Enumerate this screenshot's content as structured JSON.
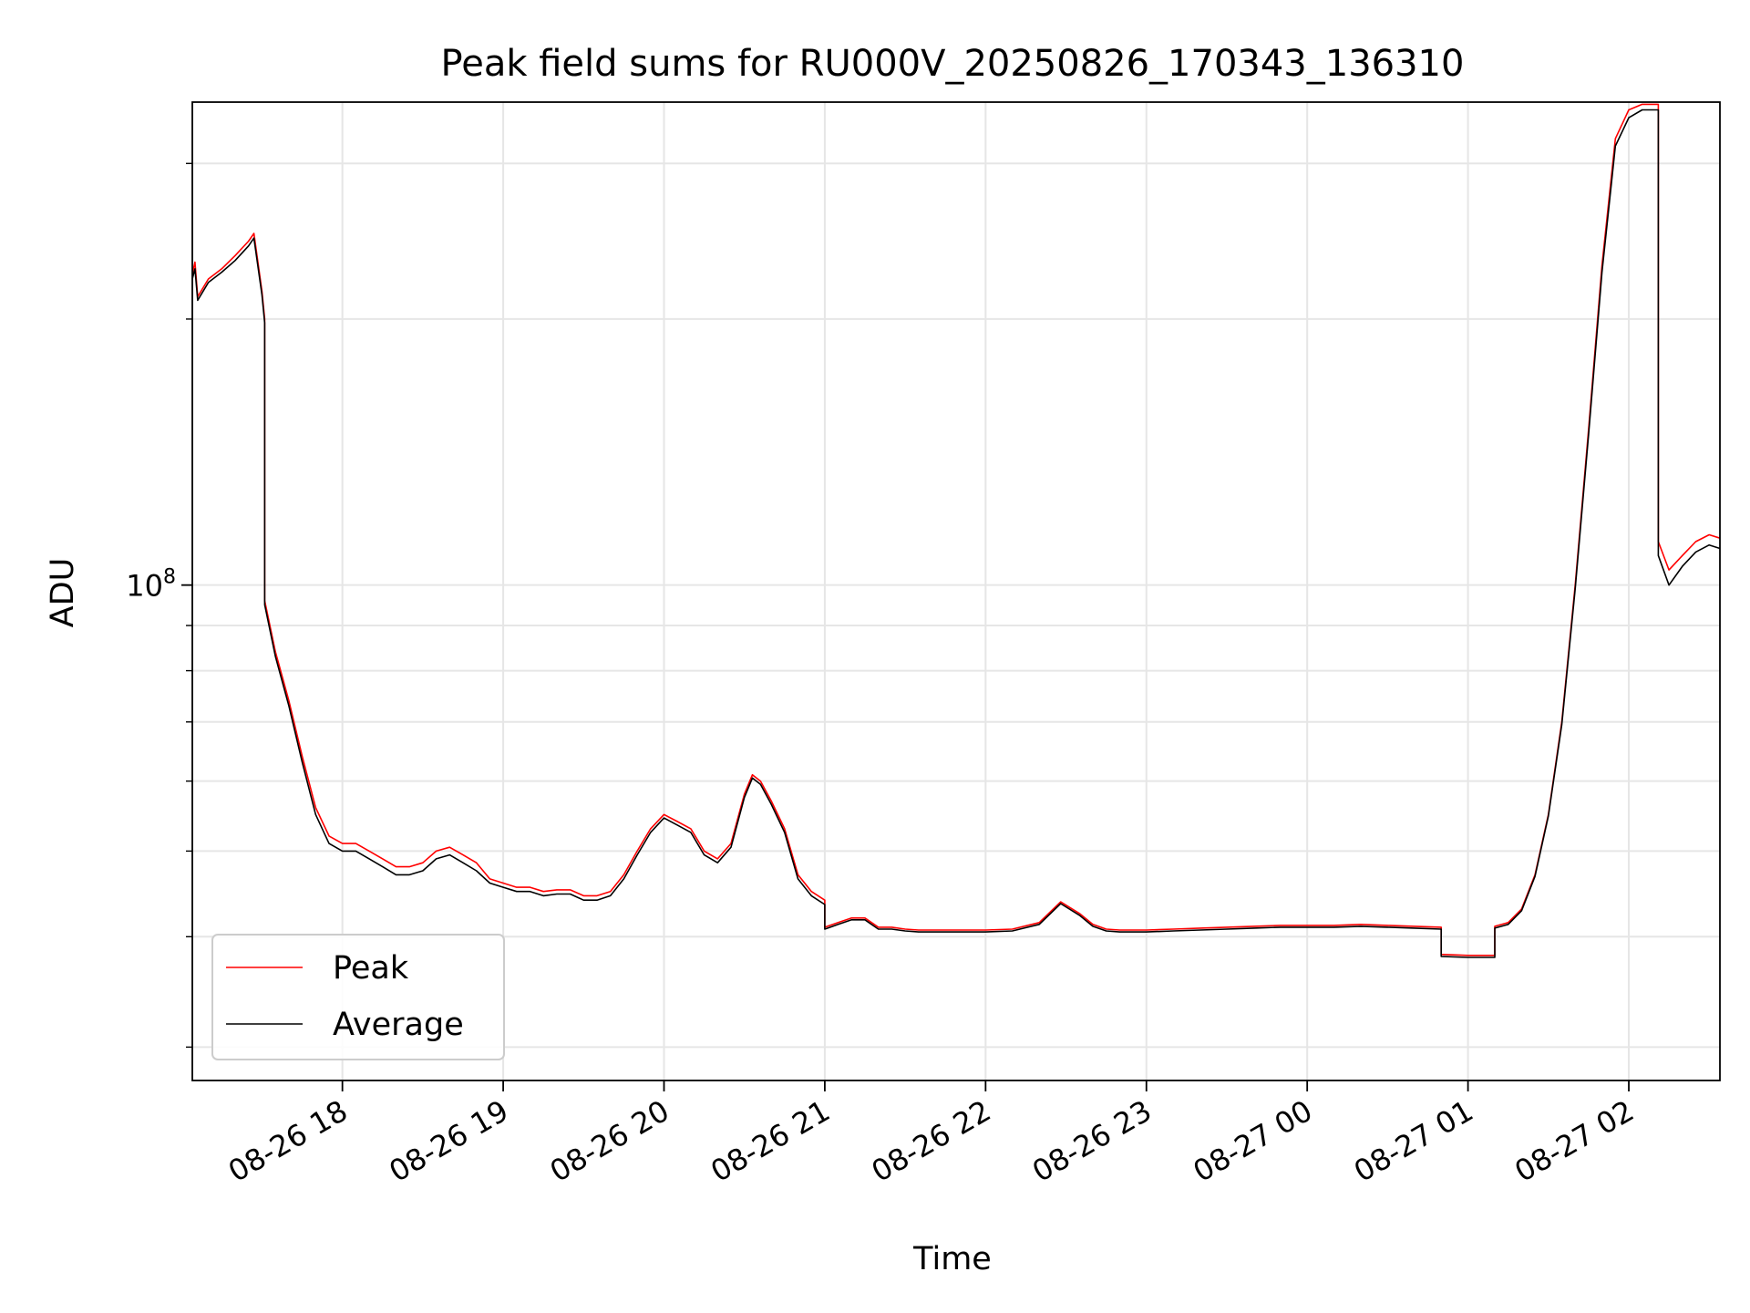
{
  "chart_data": {
    "type": "line",
    "title": "Peak field sums for RU000V_20250826_170343_136310",
    "xlabel": "Time",
    "ylabel": "ADU",
    "y_scale": "log",
    "ylim": [
      27500000,
      352000000
    ],
    "y_major_tick": {
      "value": 100000000,
      "label": "10^8"
    },
    "y_minor_ticks": [
      30000000,
      40000000,
      50000000,
      60000000,
      70000000,
      80000000,
      90000000,
      200000000,
      300000000
    ],
    "xlim": [
      "2025-08-26 17:04",
      "2025-08-27 02:34"
    ],
    "x_ticks": [
      {
        "t": "2025-08-26 18:00",
        "label": "08-26 18"
      },
      {
        "t": "2025-08-26 19:00",
        "label": "08-26 19"
      },
      {
        "t": "2025-08-26 20:00",
        "label": "08-26 20"
      },
      {
        "t": "2025-08-26 21:00",
        "label": "08-26 21"
      },
      {
        "t": "2025-08-26 22:00",
        "label": "08-26 22"
      },
      {
        "t": "2025-08-26 23:00",
        "label": "08-26 23"
      },
      {
        "t": "2025-08-27 00:00",
        "label": "08-27 00"
      },
      {
        "t": "2025-08-27 01:00",
        "label": "08-27 01"
      },
      {
        "t": "2025-08-27 02:00",
        "label": "08-27 02"
      }
    ],
    "grid": true,
    "legend_position": "lower-left",
    "series": [
      {
        "name": "Peak",
        "color": "#ff0000",
        "points": [
          [
            "2025-08-26 17:04",
            225000000
          ],
          [
            "2025-08-26 17:05",
            232000000
          ],
          [
            "2025-08-26 17:06",
            212000000
          ],
          [
            "2025-08-26 17:10",
            222000000
          ],
          [
            "2025-08-26 17:15",
            228000000
          ],
          [
            "2025-08-26 17:20",
            236000000
          ],
          [
            "2025-08-26 17:25",
            245000000
          ],
          [
            "2025-08-26 17:27",
            250000000
          ],
          [
            "2025-08-26 17:30",
            215000000
          ],
          [
            "2025-08-26 17:31",
            200000000
          ],
          [
            "2025-08-26 17:31",
            96000000
          ],
          [
            "2025-08-26 17:35",
            84000000
          ],
          [
            "2025-08-26 17:40",
            74000000
          ],
          [
            "2025-08-26 17:45",
            64000000
          ],
          [
            "2025-08-26 17:50",
            56000000
          ],
          [
            "2025-08-26 17:55",
            52000000
          ],
          [
            "2025-08-26 18:00",
            51000000
          ],
          [
            "2025-08-26 18:05",
            51000000
          ],
          [
            "2025-08-26 18:10",
            50000000
          ],
          [
            "2025-08-26 18:15",
            49000000
          ],
          [
            "2025-08-26 18:20",
            48000000
          ],
          [
            "2025-08-26 18:25",
            48000000
          ],
          [
            "2025-08-26 18:30",
            48500000
          ],
          [
            "2025-08-26 18:35",
            50000000
          ],
          [
            "2025-08-26 18:40",
            50500000
          ],
          [
            "2025-08-26 18:45",
            49500000
          ],
          [
            "2025-08-26 18:50",
            48500000
          ],
          [
            "2025-08-26 18:55",
            46500000
          ],
          [
            "2025-08-26 19:00",
            46000000
          ],
          [
            "2025-08-26 19:05",
            45500000
          ],
          [
            "2025-08-26 19:10",
            45500000
          ],
          [
            "2025-08-26 19:15",
            45000000
          ],
          [
            "2025-08-26 19:20",
            45200000
          ],
          [
            "2025-08-26 19:25",
            45200000
          ],
          [
            "2025-08-26 19:30",
            44500000
          ],
          [
            "2025-08-26 19:35",
            44500000
          ],
          [
            "2025-08-26 19:40",
            45000000
          ],
          [
            "2025-08-26 19:45",
            47000000
          ],
          [
            "2025-08-26 19:50",
            50000000
          ],
          [
            "2025-08-26 19:55",
            53000000
          ],
          [
            "2025-08-26 20:00",
            55000000
          ],
          [
            "2025-08-26 20:05",
            54000000
          ],
          [
            "2025-08-26 20:10",
            53000000
          ],
          [
            "2025-08-26 20:15",
            50000000
          ],
          [
            "2025-08-26 20:20",
            49000000
          ],
          [
            "2025-08-26 20:25",
            51000000
          ],
          [
            "2025-08-26 20:30",
            58000000
          ],
          [
            "2025-08-26 20:33",
            61000000
          ],
          [
            "2025-08-26 20:36",
            60000000
          ],
          [
            "2025-08-26 20:40",
            57000000
          ],
          [
            "2025-08-26 20:45",
            53000000
          ],
          [
            "2025-08-26 20:50",
            47000000
          ],
          [
            "2025-08-26 20:55",
            45000000
          ],
          [
            "2025-08-26 21:00",
            44000000
          ],
          [
            "2025-08-26 21:00",
            41000000
          ],
          [
            "2025-08-26 21:05",
            41500000
          ],
          [
            "2025-08-26 21:10",
            42000000
          ],
          [
            "2025-08-26 21:15",
            42000000
          ],
          [
            "2025-08-26 21:20",
            41000000
          ],
          [
            "2025-08-26 21:25",
            41000000
          ],
          [
            "2025-08-26 21:30",
            40800000
          ],
          [
            "2025-08-26 21:35",
            40700000
          ],
          [
            "2025-08-26 21:40",
            40700000
          ],
          [
            "2025-08-26 21:45",
            40700000
          ],
          [
            "2025-08-26 21:50",
            40700000
          ],
          [
            "2025-08-26 21:55",
            40700000
          ],
          [
            "2025-08-26 22:00",
            40700000
          ],
          [
            "2025-08-26 22:10",
            40800000
          ],
          [
            "2025-08-26 22:20",
            41500000
          ],
          [
            "2025-08-26 22:28",
            43800000
          ],
          [
            "2025-08-26 22:35",
            42500000
          ],
          [
            "2025-08-26 22:40",
            41300000
          ],
          [
            "2025-08-26 22:45",
            40800000
          ],
          [
            "2025-08-26 22:50",
            40700000
          ],
          [
            "2025-08-26 23:00",
            40700000
          ],
          [
            "2025-08-26 23:10",
            40800000
          ],
          [
            "2025-08-26 23:20",
            40900000
          ],
          [
            "2025-08-26 23:30",
            41000000
          ],
          [
            "2025-08-26 23:40",
            41100000
          ],
          [
            "2025-08-26 23:50",
            41200000
          ],
          [
            "2025-08-27 00:00",
            41200000
          ],
          [
            "2025-08-27 00:10",
            41200000
          ],
          [
            "2025-08-27 00:20",
            41300000
          ],
          [
            "2025-08-27 00:30",
            41200000
          ],
          [
            "2025-08-27 00:40",
            41100000
          ],
          [
            "2025-08-27 00:50",
            41000000
          ],
          [
            "2025-08-27 00:50",
            38200000
          ],
          [
            "2025-08-27 01:00",
            38100000
          ],
          [
            "2025-08-27 01:10",
            38100000
          ],
          [
            "2025-08-27 01:10",
            41100000
          ],
          [
            "2025-08-27 01:15",
            41500000
          ],
          [
            "2025-08-27 01:20",
            43000000
          ],
          [
            "2025-08-27 01:25",
            47000000
          ],
          [
            "2025-08-27 01:30",
            55000000
          ],
          [
            "2025-08-27 01:35",
            70000000
          ],
          [
            "2025-08-27 01:40",
            100000000
          ],
          [
            "2025-08-27 01:45",
            150000000
          ],
          [
            "2025-08-27 01:50",
            230000000
          ],
          [
            "2025-08-27 01:55",
            320000000
          ],
          [
            "2025-08-27 02:00",
            345000000
          ],
          [
            "2025-08-27 02:05",
            350000000
          ],
          [
            "2025-08-27 02:10",
            350000000
          ],
          [
            "2025-08-27 02:11",
            350000000
          ],
          [
            "2025-08-27 02:11",
            112000000
          ],
          [
            "2025-08-27 02:15",
            104000000
          ],
          [
            "2025-08-27 02:20",
            108000000
          ],
          [
            "2025-08-27 02:25",
            112000000
          ],
          [
            "2025-08-27 02:30",
            114000000
          ],
          [
            "2025-08-27 02:34",
            113000000
          ]
        ]
      },
      {
        "name": "Average",
        "color": "#000000",
        "points": [
          [
            "2025-08-26 17:04",
            222000000
          ],
          [
            "2025-08-26 17:05",
            228000000
          ],
          [
            "2025-08-26 17:06",
            210000000
          ],
          [
            "2025-08-26 17:10",
            220000000
          ],
          [
            "2025-08-26 17:15",
            226000000
          ],
          [
            "2025-08-26 17:20",
            233000000
          ],
          [
            "2025-08-26 17:25",
            242000000
          ],
          [
            "2025-08-26 17:27",
            247000000
          ],
          [
            "2025-08-26 17:30",
            213000000
          ],
          [
            "2025-08-26 17:31",
            198000000
          ],
          [
            "2025-08-26 17:31",
            95000000
          ],
          [
            "2025-08-26 17:35",
            83000000
          ],
          [
            "2025-08-26 17:40",
            73000000
          ],
          [
            "2025-08-26 17:45",
            63000000
          ],
          [
            "2025-08-26 17:50",
            55000000
          ],
          [
            "2025-08-26 17:55",
            51000000
          ],
          [
            "2025-08-26 18:00",
            50000000
          ],
          [
            "2025-08-26 18:05",
            50000000
          ],
          [
            "2025-08-26 18:10",
            49000000
          ],
          [
            "2025-08-26 18:15",
            48000000
          ],
          [
            "2025-08-26 18:20",
            47000000
          ],
          [
            "2025-08-26 18:25",
            47000000
          ],
          [
            "2025-08-26 18:30",
            47500000
          ],
          [
            "2025-08-26 18:35",
            49000000
          ],
          [
            "2025-08-26 18:40",
            49500000
          ],
          [
            "2025-08-26 18:45",
            48500000
          ],
          [
            "2025-08-26 18:50",
            47500000
          ],
          [
            "2025-08-26 18:55",
            46000000
          ],
          [
            "2025-08-26 19:00",
            45500000
          ],
          [
            "2025-08-26 19:05",
            45000000
          ],
          [
            "2025-08-26 19:10",
            45000000
          ],
          [
            "2025-08-26 19:15",
            44500000
          ],
          [
            "2025-08-26 19:20",
            44700000
          ],
          [
            "2025-08-26 19:25",
            44700000
          ],
          [
            "2025-08-26 19:30",
            44000000
          ],
          [
            "2025-08-26 19:35",
            44000000
          ],
          [
            "2025-08-26 19:40",
            44500000
          ],
          [
            "2025-08-26 19:45",
            46500000
          ],
          [
            "2025-08-26 19:50",
            49500000
          ],
          [
            "2025-08-26 19:55",
            52500000
          ],
          [
            "2025-08-26 20:00",
            54500000
          ],
          [
            "2025-08-26 20:05",
            53500000
          ],
          [
            "2025-08-26 20:10",
            52500000
          ],
          [
            "2025-08-26 20:15",
            49500000
          ],
          [
            "2025-08-26 20:20",
            48500000
          ],
          [
            "2025-08-26 20:25",
            50500000
          ],
          [
            "2025-08-26 20:30",
            57500000
          ],
          [
            "2025-08-26 20:33",
            60500000
          ],
          [
            "2025-08-26 20:36",
            59500000
          ],
          [
            "2025-08-26 20:40",
            56500000
          ],
          [
            "2025-08-26 20:45",
            52500000
          ],
          [
            "2025-08-26 20:50",
            46500000
          ],
          [
            "2025-08-26 20:55",
            44500000
          ],
          [
            "2025-08-26 21:00",
            43500000
          ],
          [
            "2025-08-26 21:00",
            40800000
          ],
          [
            "2025-08-26 21:05",
            41300000
          ],
          [
            "2025-08-26 21:10",
            41800000
          ],
          [
            "2025-08-26 21:15",
            41800000
          ],
          [
            "2025-08-26 21:20",
            40800000
          ],
          [
            "2025-08-26 21:25",
            40800000
          ],
          [
            "2025-08-26 21:30",
            40600000
          ],
          [
            "2025-08-26 21:35",
            40500000
          ],
          [
            "2025-08-26 21:40",
            40500000
          ],
          [
            "2025-08-26 21:45",
            40500000
          ],
          [
            "2025-08-26 21:50",
            40500000
          ],
          [
            "2025-08-26 21:55",
            40500000
          ],
          [
            "2025-08-26 22:00",
            40500000
          ],
          [
            "2025-08-26 22:10",
            40600000
          ],
          [
            "2025-08-26 22:20",
            41300000
          ],
          [
            "2025-08-26 22:28",
            43600000
          ],
          [
            "2025-08-26 22:35",
            42300000
          ],
          [
            "2025-08-26 22:40",
            41100000
          ],
          [
            "2025-08-26 22:45",
            40600000
          ],
          [
            "2025-08-26 22:50",
            40500000
          ],
          [
            "2025-08-26 23:00",
            40500000
          ],
          [
            "2025-08-26 23:10",
            40600000
          ],
          [
            "2025-08-26 23:20",
            40700000
          ],
          [
            "2025-08-26 23:30",
            40800000
          ],
          [
            "2025-08-26 23:40",
            40900000
          ],
          [
            "2025-08-26 23:50",
            41000000
          ],
          [
            "2025-08-27 00:00",
            41000000
          ],
          [
            "2025-08-27 00:10",
            41000000
          ],
          [
            "2025-08-27 00:20",
            41100000
          ],
          [
            "2025-08-27 00:30",
            41000000
          ],
          [
            "2025-08-27 00:40",
            40900000
          ],
          [
            "2025-08-27 00:50",
            40800000
          ],
          [
            "2025-08-27 00:50",
            38000000
          ],
          [
            "2025-08-27 01:00",
            37900000
          ],
          [
            "2025-08-27 01:10",
            37900000
          ],
          [
            "2025-08-27 01:10",
            40900000
          ],
          [
            "2025-08-27 01:15",
            41300000
          ],
          [
            "2025-08-27 01:20",
            42800000
          ],
          [
            "2025-08-27 01:25",
            46800000
          ],
          [
            "2025-08-27 01:30",
            54800000
          ],
          [
            "2025-08-27 01:35",
            69500000
          ],
          [
            "2025-08-27 01:40",
            99000000
          ],
          [
            "2025-08-27 01:45",
            148000000
          ],
          [
            "2025-08-27 01:50",
            226000000
          ],
          [
            "2025-08-27 01:55",
            314000000
          ],
          [
            "2025-08-27 02:00",
            338000000
          ],
          [
            "2025-08-27 02:05",
            345000000
          ],
          [
            "2025-08-27 02:10",
            345000000
          ],
          [
            "2025-08-27 02:11",
            345000000
          ],
          [
            "2025-08-27 02:11",
            108000000
          ],
          [
            "2025-08-27 02:15",
            100000000
          ],
          [
            "2025-08-27 02:20",
            105000000
          ],
          [
            "2025-08-27 02:25",
            109000000
          ],
          [
            "2025-08-27 02:30",
            111000000
          ],
          [
            "2025-08-27 02:34",
            110000000
          ]
        ]
      }
    ]
  }
}
